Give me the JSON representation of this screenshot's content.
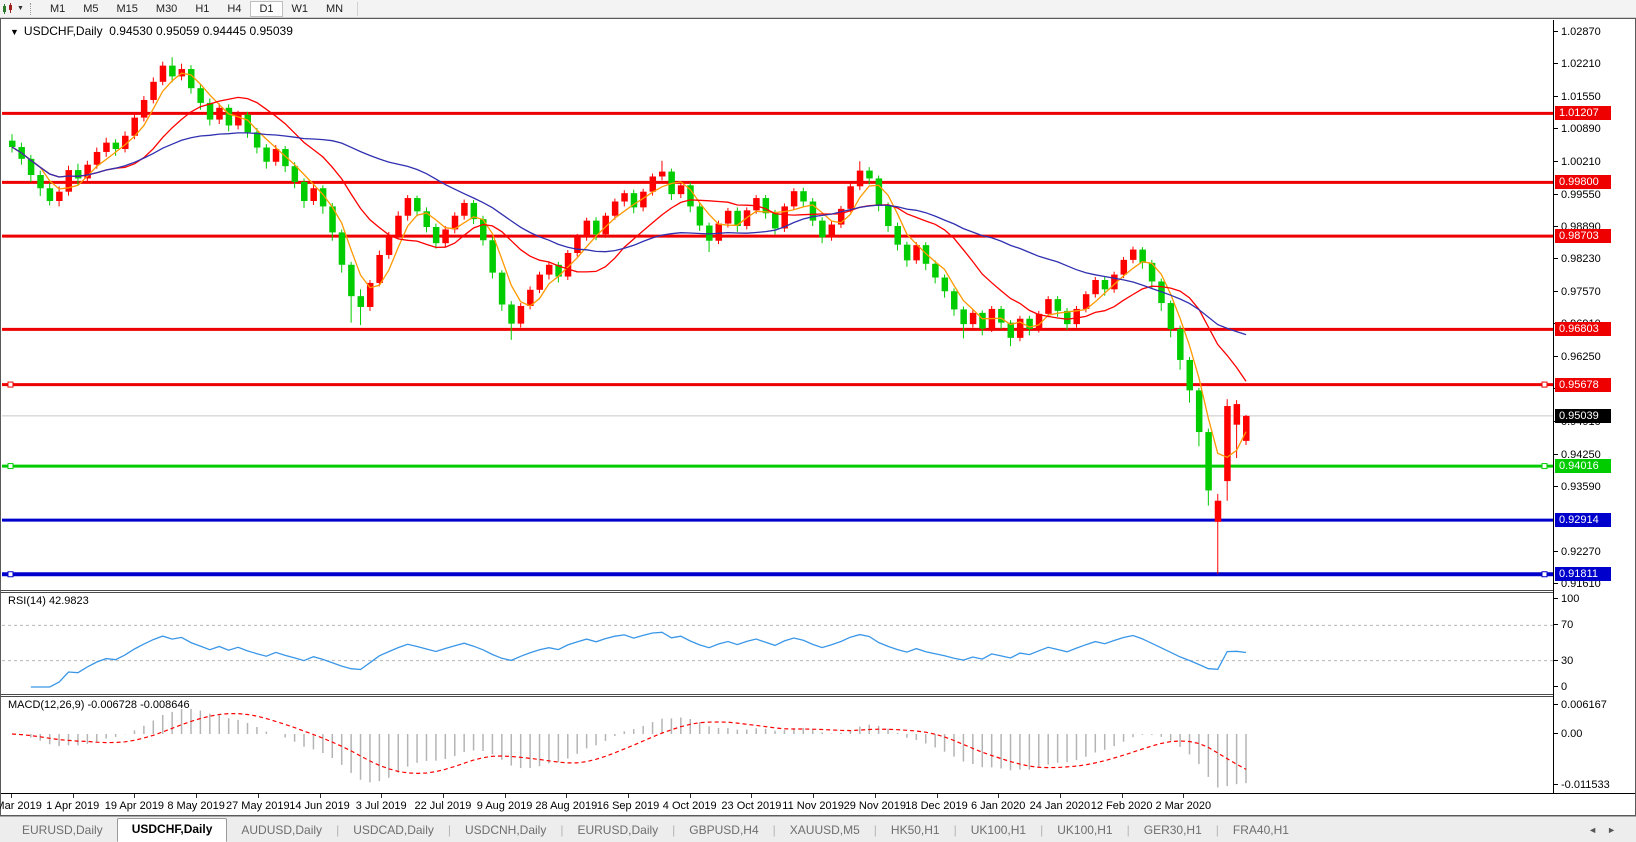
{
  "icons": {
    "dropdown": "▼",
    "collapse_triangle": "▼",
    "scroll_left": "◄",
    "scroll_right": "►"
  },
  "toolbar": {
    "timeframes": [
      "M1",
      "M5",
      "M15",
      "M30",
      "H1",
      "H4",
      "D1",
      "W1",
      "MN"
    ],
    "active_timeframe": "D1"
  },
  "chart_header": {
    "symbol": "USDCHF,Daily",
    "open": "0.94530",
    "high": "0.95059",
    "low": "0.94445",
    "close": "0.95039"
  },
  "price_axis": {
    "ticks": [
      "1.02870",
      "1.02210",
      "1.01550",
      "1.00890",
      "1.00210",
      "0.99550",
      "0.98890",
      "0.98230",
      "0.97570",
      "0.96910",
      "0.96250",
      "0.95590",
      "0.94910",
      "0.94250",
      "0.93590",
      "0.92270",
      "0.91610"
    ],
    "line_labels": [
      {
        "text": "1.01207",
        "bg": "#ee0000"
      },
      {
        "text": "0.99800",
        "bg": "#ee0000"
      },
      {
        "text": "0.98703",
        "bg": "#ee0000"
      },
      {
        "text": "0.96803",
        "bg": "#ee0000"
      },
      {
        "text": "0.95678",
        "bg": "#ee0000"
      },
      {
        "text": "0.95039",
        "bg": "#000000"
      },
      {
        "text": "0.94016",
        "bg": "#00cc00"
      },
      {
        "text": "0.92914",
        "bg": "#0000cc"
      },
      {
        "text": "0.91811",
        "bg": "#0000cc"
      }
    ]
  },
  "rsi_panel": {
    "name": "RSI(14)",
    "value": "42.9823",
    "axis_labels": [
      "100",
      "70",
      "30",
      "0"
    ],
    "levels": [
      70,
      30
    ],
    "line_color": "#3a97e8"
  },
  "macd_panel": {
    "name": "MACD(12,26,9)",
    "value_main": "-0.006728",
    "value_signal": "-0.008646",
    "axis_labels": [
      "0.006167",
      "0.00",
      "-0.011533"
    ],
    "histogram_color": "#b4b4b4",
    "signal_color": "#ff0000"
  },
  "date_axis": {
    "labels": [
      "13 Mar 2019",
      "1 Apr 2019",
      "19 Apr 2019",
      "8 May 2019",
      "27 May 2019",
      "14 Jun 2019",
      "3 Jul 2019",
      "22 Jul 2019",
      "9 Aug 2019",
      "28 Aug 2019",
      "16 Sep 2019",
      "4 Oct 2019",
      "23 Oct 2019",
      "11 Nov 2019",
      "29 Nov 2019",
      "18 Dec 2019",
      "6 Jan 2020",
      "24 Jan 2020",
      "12 Feb 2020",
      "2 Mar 2020"
    ]
  },
  "tab_bar": {
    "tabs": [
      {
        "label": "EURUSD,Daily",
        "active": false
      },
      {
        "label": "USDCHF,Daily",
        "active": true
      },
      {
        "label": "AUDUSD,Daily",
        "active": false
      },
      {
        "label": "USDCAD,Daily",
        "active": false
      },
      {
        "label": "USDCNH,Daily",
        "active": false
      },
      {
        "label": "EURUSD,Daily",
        "active": false
      },
      {
        "label": "GBPUSD,H4",
        "active": false
      },
      {
        "label": "XAUUSD,M5",
        "active": false
      },
      {
        "label": "HK50,H1",
        "active": false
      },
      {
        "label": "UK100,H1",
        "active": false
      },
      {
        "label": "UK100,H1",
        "active": false
      },
      {
        "label": "GER30,H1",
        "active": false
      },
      {
        "label": "FRA40,H1",
        "active": false
      }
    ]
  },
  "chart_data": {
    "type": "candlestick",
    "symbol": "USDCHF",
    "timeframe": "Daily",
    "title": "USDCHF,Daily",
    "price_top": 1.0311,
    "price_bottom": 0.9149,
    "bull_color": "#ff0000",
    "bear_color": "#00cc00",
    "current_price_line": {
      "price": 0.95039,
      "color": "#c8c8c8"
    },
    "horizontal_lines": [
      {
        "price": 1.01207,
        "color": "#ee0000",
        "width": 3,
        "selected": false
      },
      {
        "price": 0.998,
        "color": "#ee0000",
        "width": 3,
        "selected": false
      },
      {
        "price": 0.98703,
        "color": "#ee0000",
        "width": 3,
        "selected": false
      },
      {
        "price": 0.96803,
        "color": "#ee0000",
        "width": 3,
        "selected": false
      },
      {
        "price": 0.95678,
        "color": "#ee0000",
        "width": 3,
        "selected": true
      },
      {
        "price": 0.94016,
        "color": "#00cc00",
        "width": 3,
        "selected": true
      },
      {
        "price": 0.92914,
        "color": "#0000cc",
        "width": 3,
        "selected": false
      },
      {
        "price": 0.91811,
        "color": "#0000cc",
        "width": 4,
        "selected": true
      }
    ],
    "moving_averages": [
      {
        "name": "ma-fast",
        "period": 4,
        "color": "#ff9900"
      },
      {
        "name": "ma-medium",
        "period": 12,
        "color": "#ff0000"
      },
      {
        "name": "ma-slow",
        "period": 30,
        "color": "#3030b0"
      }
    ],
    "rsi": {
      "period": 14
    },
    "macd": {
      "fast": 12,
      "slow": 26,
      "signal": 9
    },
    "x_labels": [
      "13 Mar 2019",
      "1 Apr 2019",
      "19 Apr 2019",
      "8 May 2019",
      "27 May 2019",
      "14 Jun 2019",
      "3 Jul 2019",
      "22 Jul 2019",
      "9 Aug 2019",
      "28 Aug 2019",
      "16 Sep 2019",
      "4 Oct 2019",
      "23 Oct 2019",
      "11 Nov 2019",
      "29 Nov 2019",
      "18 Dec 2019",
      "6 Jan 2020",
      "24 Jan 2020",
      "12 Feb 2020",
      "2 Mar 2020"
    ],
    "candles": [
      [
        1.0065,
        1.0078,
        1.0041,
        1.0052
      ],
      [
        1.0052,
        1.0061,
        1.0016,
        1.0028
      ],
      [
        1.0028,
        1.0036,
        0.9981,
        0.9995
      ],
      [
        0.9995,
        1.0004,
        0.9952,
        0.9968
      ],
      [
        0.9968,
        0.9979,
        0.9933,
        0.9942
      ],
      [
        0.9942,
        0.9972,
        0.9931,
        0.9961
      ],
      [
        0.9961,
        1.0014,
        0.9953,
        1.0005
      ],
      [
        1.0005,
        1.0018,
        0.9974,
        0.9988
      ],
      [
        0.9988,
        1.0024,
        0.9981,
        1.0016
      ],
      [
        1.0016,
        1.0051,
        1.0008,
        1.0042
      ],
      [
        1.0042,
        1.0071,
        1.0032,
        1.0061
      ],
      [
        1.0061,
        1.0068,
        1.0034,
        1.0048
      ],
      [
        1.0048,
        1.0084,
        1.0041,
        1.0075
      ],
      [
        1.0075,
        1.0121,
        1.0068,
        1.0112
      ],
      [
        1.0112,
        1.0156,
        1.0104,
        1.0148
      ],
      [
        1.0148,
        1.0194,
        1.0141,
        1.0185
      ],
      [
        1.0185,
        1.0226,
        1.0178,
        1.0218
      ],
      [
        1.0218,
        1.0235,
        1.0184,
        1.0196
      ],
      [
        1.0196,
        1.0222,
        1.0188,
        1.0211
      ],
      [
        1.0211,
        1.0219,
        1.0161,
        1.0172
      ],
      [
        1.0172,
        1.0181,
        1.0128,
        1.0142
      ],
      [
        1.0142,
        1.0151,
        1.0096,
        1.0108
      ],
      [
        1.0108,
        1.0141,
        1.0099,
        1.0132
      ],
      [
        1.0132,
        1.0139,
        1.0084,
        1.0096
      ],
      [
        1.0096,
        1.0126,
        1.0088,
        1.0118
      ],
      [
        1.0118,
        1.0124,
        1.0071,
        1.0082
      ],
      [
        1.0082,
        1.0091,
        1.0039,
        1.0051
      ],
      [
        1.0051,
        1.0058,
        1.0008,
        1.0022
      ],
      [
        1.0022,
        1.0056,
        1.0014,
        1.0048
      ],
      [
        1.0048,
        1.0054,
        1.0001,
        1.0013
      ],
      [
        1.0013,
        1.0021,
        0.9968,
        0.9981
      ],
      [
        0.9981,
        0.9988,
        0.9928,
        0.9942
      ],
      [
        0.9942,
        0.9976,
        0.9934,
        0.9968
      ],
      [
        0.9968,
        0.9974,
        0.9916,
        0.9931
      ],
      [
        0.9931,
        0.9938,
        0.9861,
        0.9878
      ],
      [
        0.9878,
        0.9884,
        0.9796,
        0.9812
      ],
      [
        0.9812,
        0.9818,
        0.9694,
        0.9748
      ],
      [
        0.9748,
        0.9762,
        0.9689,
        0.9726
      ],
      [
        0.9726,
        0.9781,
        0.9718,
        0.9775
      ],
      [
        0.9775,
        0.9841,
        0.9768,
        0.9832
      ],
      [
        0.9832,
        0.9879,
        0.9824,
        0.9871
      ],
      [
        0.9871,
        0.9921,
        0.9864,
        0.9912
      ],
      [
        0.9912,
        0.9954,
        0.9902,
        0.9948
      ],
      [
        0.9948,
        0.9953,
        0.9911,
        0.9921
      ],
      [
        0.9921,
        0.9929,
        0.9878,
        0.9889
      ],
      [
        0.9889,
        0.9896,
        0.9845,
        0.9856
      ],
      [
        0.9856,
        0.9891,
        0.9848,
        0.9884
      ],
      [
        0.9884,
        0.9919,
        0.9876,
        0.9912
      ],
      [
        0.9912,
        0.9945,
        0.9904,
        0.9938
      ],
      [
        0.9938,
        0.9944,
        0.9895,
        0.9905
      ],
      [
        0.9905,
        0.9912,
        0.9851,
        0.9862
      ],
      [
        0.9862,
        0.9868,
        0.9784,
        0.9796
      ],
      [
        0.9796,
        0.9801,
        0.9718,
        0.9731
      ],
      [
        0.9731,
        0.9738,
        0.9659,
        0.9692
      ],
      [
        0.9692,
        0.9734,
        0.9684,
        0.9728
      ],
      [
        0.9728,
        0.9768,
        0.9721,
        0.9761
      ],
      [
        0.9761,
        0.9798,
        0.9754,
        0.9792
      ],
      [
        0.9792,
        0.9819,
        0.9782,
        0.9812
      ],
      [
        0.9812,
        0.9818,
        0.9776,
        0.9788
      ],
      [
        0.9788,
        0.9842,
        0.9781,
        0.9836
      ],
      [
        0.9836,
        0.9875,
        0.9829,
        0.9869
      ],
      [
        0.9869,
        0.9908,
        0.9861,
        0.9902
      ],
      [
        0.9902,
        0.9909,
        0.9862,
        0.9874
      ],
      [
        0.9874,
        0.9918,
        0.9867,
        0.9912
      ],
      [
        0.9912,
        0.9947,
        0.9904,
        0.9941
      ],
      [
        0.9941,
        0.9964,
        0.9931,
        0.9958
      ],
      [
        0.9958,
        0.9965,
        0.9917,
        0.9929
      ],
      [
        0.9929,
        0.9967,
        0.9921,
        0.9961
      ],
      [
        0.9961,
        0.9998,
        0.9953,
        0.9992
      ],
      [
        0.9992,
        1.0024,
        0.9984,
        1.0002
      ],
      [
        1.0002,
        1.0008,
        0.9944,
        0.9956
      ],
      [
        0.9956,
        0.9981,
        0.9948,
        0.9974
      ],
      [
        0.9974,
        0.998,
        0.9919,
        0.9931
      ],
      [
        0.9931,
        0.9938,
        0.9881,
        0.9892
      ],
      [
        0.9892,
        0.9898,
        0.9838,
        0.9861
      ],
      [
        0.9861,
        0.9902,
        0.9854,
        0.9896
      ],
      [
        0.9896,
        0.9928,
        0.9888,
        0.9922
      ],
      [
        0.9922,
        0.9929,
        0.9879,
        0.9891
      ],
      [
        0.9891,
        0.9929,
        0.9884,
        0.9923
      ],
      [
        0.9923,
        0.9954,
        0.9916,
        0.9948
      ],
      [
        0.9948,
        0.9954,
        0.9906,
        0.9917
      ],
      [
        0.9917,
        0.9924,
        0.9874,
        0.9886
      ],
      [
        0.9886,
        0.9937,
        0.9879,
        0.9931
      ],
      [
        0.9931,
        0.9968,
        0.9924,
        0.9962
      ],
      [
        0.9962,
        0.9969,
        0.9929,
        0.9941
      ],
      [
        0.9941,
        0.9948,
        0.9891,
        0.9902
      ],
      [
        0.9902,
        0.9909,
        0.9856,
        0.9868
      ],
      [
        0.9868,
        0.9901,
        0.9861,
        0.9894
      ],
      [
        0.9894,
        0.9932,
        0.9887,
        0.9926
      ],
      [
        0.9926,
        0.9978,
        0.9919,
        0.9972
      ],
      [
        0.9972,
        1.0023,
        0.9964,
        1.0004
      ],
      [
        1.0004,
        1.0011,
        0.9976,
        0.9988
      ],
      [
        0.9988,
        0.9994,
        0.9921,
        0.9932
      ],
      [
        0.9932,
        0.9939,
        0.9879,
        0.9891
      ],
      [
        0.9891,
        0.9898,
        0.9841,
        0.9853
      ],
      [
        0.9853,
        0.9859,
        0.9808,
        0.9821
      ],
      [
        0.9821,
        0.9858,
        0.9814,
        0.9852
      ],
      [
        0.9852,
        0.9858,
        0.9801,
        0.9814
      ],
      [
        0.9814,
        0.9821,
        0.9774,
        0.9786
      ],
      [
        0.9786,
        0.9792,
        0.9745,
        0.9758
      ],
      [
        0.9758,
        0.9764,
        0.9708,
        0.9721
      ],
      [
        0.9721,
        0.9727,
        0.9662,
        0.9691
      ],
      [
        0.9691,
        0.9721,
        0.9684,
        0.9714
      ],
      [
        0.9714,
        0.9719,
        0.9668,
        0.9682
      ],
      [
        0.9682,
        0.9728,
        0.9675,
        0.9722
      ],
      [
        0.9722,
        0.9728,
        0.9681,
        0.9694
      ],
      [
        0.9694,
        0.9699,
        0.9646,
        0.9663
      ],
      [
        0.9663,
        0.9708,
        0.9656,
        0.9702
      ],
      [
        0.9702,
        0.9708,
        0.9668,
        0.9681
      ],
      [
        0.9681,
        0.9718,
        0.9674,
        0.9712
      ],
      [
        0.9712,
        0.9748,
        0.9705,
        0.9742
      ],
      [
        0.9742,
        0.9748,
        0.9706,
        0.9718
      ],
      [
        0.9718,
        0.9724,
        0.9679,
        0.9691
      ],
      [
        0.9691,
        0.9728,
        0.9684,
        0.9722
      ],
      [
        0.9722,
        0.9758,
        0.9715,
        0.9752
      ],
      [
        0.9752,
        0.9787,
        0.9745,
        0.9781
      ],
      [
        0.9781,
        0.9788,
        0.9749,
        0.9762
      ],
      [
        0.9762,
        0.9798,
        0.9755,
        0.9792
      ],
      [
        0.9792,
        0.9828,
        0.9785,
        0.9822
      ],
      [
        0.9822,
        0.9849,
        0.9815,
        0.9843
      ],
      [
        0.9843,
        0.9848,
        0.9804,
        0.9816
      ],
      [
        0.9816,
        0.9822,
        0.9764,
        0.9778
      ],
      [
        0.9778,
        0.9784,
        0.9718,
        0.9734
      ],
      [
        0.9734,
        0.9739,
        0.9664,
        0.9681
      ],
      [
        0.9681,
        0.9688,
        0.9598,
        0.9618
      ],
      [
        0.9618,
        0.9624,
        0.9531,
        0.9556
      ],
      [
        0.9556,
        0.9561,
        0.9442,
        0.9471
      ],
      [
        0.9471,
        0.9478,
        0.9321,
        0.9352
      ],
      [
        0.9288,
        0.9345,
        0.9182,
        0.9331
      ],
      [
        0.9371,
        0.9538,
        0.9331,
        0.9524
      ],
      [
        0.9486,
        0.9536,
        0.9418,
        0.9528
      ],
      [
        0.9453,
        0.95059,
        0.94445,
        0.95039
      ]
    ]
  }
}
